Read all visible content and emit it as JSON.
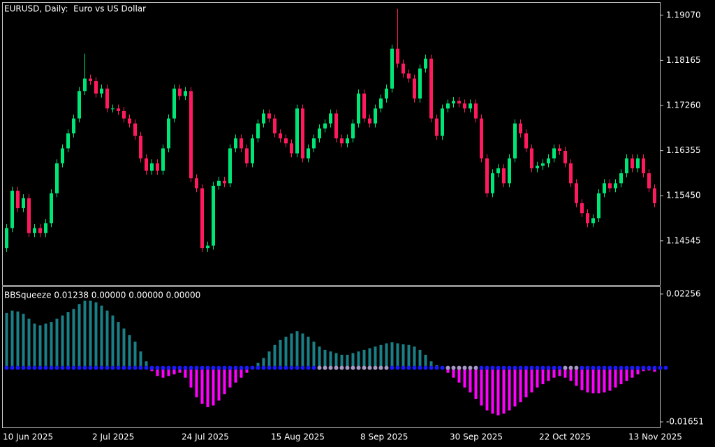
{
  "chart_data": [
    {
      "type": "candlestick",
      "title": "EURUSD, Daily:  Euro vs US Dollar",
      "categories": [
        "10 Jun 2025",
        null,
        null,
        null,
        null,
        null,
        null,
        null,
        null,
        null,
        null,
        null,
        null,
        null,
        null,
        null,
        "2 Jul 2025",
        null,
        null,
        null,
        null,
        null,
        null,
        null,
        null,
        null,
        null,
        null,
        null,
        null,
        null,
        null,
        "24 Jul 2025",
        null,
        null,
        null,
        null,
        null,
        null,
        null,
        null,
        null,
        null,
        null,
        null,
        null,
        null,
        null,
        "15 Aug 2025",
        null,
        null,
        null,
        null,
        null,
        null,
        null,
        null,
        null,
        null,
        null,
        null,
        null,
        null,
        null,
        "8 Sep 2025",
        null,
        null,
        null,
        null,
        null,
        null,
        null,
        null,
        null,
        null,
        null,
        null,
        null,
        null,
        null,
        "30 Sep 2025",
        null,
        null,
        null,
        null,
        null,
        null,
        null,
        null,
        null,
        null,
        null,
        null,
        null,
        null,
        null,
        "22 Oct 2025",
        null,
        null,
        null,
        null,
        null,
        null,
        null,
        null,
        null,
        null,
        null,
        null,
        null,
        null,
        null,
        "13 Nov 2025",
        null,
        null,
        null,
        null
      ],
      "open": [
        1.144,
        1.148,
        1.1555,
        1.152,
        1.154,
        1.147,
        1.148,
        1.147,
        1.149,
        1.155,
        1.161,
        1.164,
        1.167,
        1.17,
        1.1755,
        1.178,
        1.1775,
        1.175,
        1.176,
        1.172,
        1.172,
        1.1715,
        1.17,
        1.169,
        1.1665,
        1.162,
        1.1595,
        1.161,
        1.1595,
        1.164,
        1.17,
        1.176,
        1.1745,
        1.1755,
        1.158,
        1.156,
        1.144,
        1.1445,
        1.1565,
        1.1575,
        1.157,
        1.164,
        1.166,
        1.164,
        1.161,
        1.166,
        1.169,
        1.171,
        1.17,
        1.167,
        1.166,
        1.165,
        1.163,
        1.172,
        1.162,
        1.164,
        1.166,
        1.168,
        1.169,
        1.171,
        1.166,
        1.165,
        1.166,
        1.169,
        1.175,
        1.17,
        1.169,
        1.172,
        1.174,
        1.176,
        1.184,
        1.181,
        1.179,
        1.178,
        1.174,
        1.18,
        1.182,
        1.17,
        1.1665,
        1.172,
        1.173,
        1.1735,
        1.173,
        1.172,
        1.173,
        1.17,
        1.162,
        1.155,
        1.159,
        1.16,
        1.157,
        1.162,
        1.169,
        1.167,
        1.164,
        1.16,
        1.1605,
        1.161,
        1.162,
        1.164,
        1.1635,
        1.161,
        1.157,
        1.153,
        1.151,
        1.149,
        1.15,
        1.155,
        1.157,
        1.156,
        1.157,
        1.159,
        1.162,
        1.16,
        1.162,
        1.159,
        1.156
      ],
      "high": [
        1.1488,
        1.1563,
        1.1563,
        1.1548,
        1.1548,
        1.1488,
        1.1488,
        1.1498,
        1.1558,
        1.1618,
        1.1648,
        1.1678,
        1.1708,
        1.1763,
        1.183,
        1.1788,
        1.1783,
        1.1768,
        1.1768,
        1.1728,
        1.1728,
        1.1723,
        1.1708,
        1.1698,
        1.1673,
        1.1628,
        1.1618,
        1.1618,
        1.1648,
        1.1708,
        1.1768,
        1.1768,
        1.1763,
        1.1763,
        1.1588,
        1.1568,
        1.1453,
        1.1573,
        1.1583,
        1.1583,
        1.1648,
        1.1668,
        1.1668,
        1.1648,
        1.1668,
        1.1698,
        1.1718,
        1.1718,
        1.1708,
        1.1678,
        1.1668,
        1.1658,
        1.1728,
        1.1728,
        1.1648,
        1.1668,
        1.1688,
        1.1698,
        1.1718,
        1.1718,
        1.1668,
        1.1668,
        1.1698,
        1.1758,
        1.1758,
        1.1708,
        1.1728,
        1.1748,
        1.1768,
        1.1848,
        1.192,
        1.1818,
        1.1798,
        1.1788,
        1.1808,
        1.1828,
        1.1828,
        1.1708,
        1.1728,
        1.1738,
        1.1743,
        1.1743,
        1.1738,
        1.1738,
        1.1738,
        1.1708,
        1.1628,
        1.1598,
        1.1608,
        1.1608,
        1.1628,
        1.1698,
        1.1698,
        1.1678,
        1.1648,
        1.1613,
        1.1618,
        1.1628,
        1.1648,
        1.1648,
        1.1643,
        1.1618,
        1.1578,
        1.1538,
        1.1518,
        1.1508,
        1.1558,
        1.1578,
        1.1578,
        1.1578,
        1.1598,
        1.1628,
        1.1628,
        1.1628,
        1.1628,
        1.1598,
        1.1568
      ],
      "low": [
        1.1432,
        1.1472,
        1.1512,
        1.1512,
        1.1462,
        1.1462,
        1.1462,
        1.1462,
        1.1482,
        1.1542,
        1.1602,
        1.1632,
        1.1662,
        1.1692,
        1.1747,
        1.1767,
        1.1742,
        1.1742,
        1.1712,
        1.1712,
        1.1707,
        1.1692,
        1.1682,
        1.1657,
        1.1612,
        1.1587,
        1.1587,
        1.1587,
        1.1587,
        1.1632,
        1.1692,
        1.1737,
        1.1737,
        1.1572,
        1.1552,
        1.1432,
        1.1432,
        1.1437,
        1.1557,
        1.1562,
        1.1562,
        1.1632,
        1.1632,
        1.1602,
        1.1602,
        1.1652,
        1.1682,
        1.1692,
        1.1662,
        1.1652,
        1.1642,
        1.1622,
        1.1622,
        1.1612,
        1.1612,
        1.1632,
        1.1652,
        1.1672,
        1.1682,
        1.1652,
        1.1642,
        1.1642,
        1.1652,
        1.1682,
        1.1692,
        1.1682,
        1.1682,
        1.1712,
        1.1732,
        1.1752,
        1.1802,
        1.1782,
        1.1772,
        1.1732,
        1.1732,
        1.1792,
        1.1692,
        1.1657,
        1.1657,
        1.1712,
        1.1722,
        1.1722,
        1.1712,
        1.1712,
        1.1692,
        1.1612,
        1.1542,
        1.1542,
        1.1582,
        1.1562,
        1.1562,
        1.1612,
        1.1662,
        1.1632,
        1.1592,
        1.1592,
        1.1597,
        1.1602,
        1.1612,
        1.1627,
        1.1602,
        1.1562,
        1.1522,
        1.1502,
        1.1482,
        1.1482,
        1.1492,
        1.1542,
        1.1552,
        1.1552,
        1.1562,
        1.1582,
        1.1592,
        1.1592,
        1.1582,
        1.1552,
        1.1522
      ],
      "close": [
        1.148,
        1.1555,
        1.152,
        1.154,
        1.147,
        1.148,
        1.147,
        1.149,
        1.155,
        1.161,
        1.164,
        1.167,
        1.17,
        1.1755,
        1.178,
        1.1775,
        1.175,
        1.176,
        1.172,
        1.172,
        1.1715,
        1.17,
        1.169,
        1.1665,
        1.162,
        1.1595,
        1.161,
        1.1595,
        1.164,
        1.17,
        1.176,
        1.1745,
        1.1755,
        1.158,
        1.156,
        1.144,
        1.1445,
        1.1565,
        1.1575,
        1.157,
        1.164,
        1.166,
        1.164,
        1.161,
        1.166,
        1.169,
        1.171,
        1.17,
        1.167,
        1.166,
        1.165,
        1.163,
        1.172,
        1.162,
        1.164,
        1.166,
        1.168,
        1.169,
        1.171,
        1.166,
        1.165,
        1.166,
        1.169,
        1.175,
        1.17,
        1.169,
        1.172,
        1.174,
        1.176,
        1.184,
        1.181,
        1.179,
        1.178,
        1.174,
        1.18,
        1.182,
        1.17,
        1.1665,
        1.172,
        1.173,
        1.1735,
        1.173,
        1.172,
        1.173,
        1.17,
        1.162,
        1.155,
        1.159,
        1.16,
        1.157,
        1.162,
        1.169,
        1.167,
        1.164,
        1.16,
        1.1605,
        1.161,
        1.162,
        1.164,
        1.1635,
        1.161,
        1.157,
        1.153,
        1.151,
        1.149,
        1.15,
        1.155,
        1.157,
        1.156,
        1.157,
        1.159,
        1.162,
        1.16,
        1.162,
        1.159,
        1.156,
        1.153
      ],
      "up_color": "#00e676",
      "down_color": "#ff1a5e",
      "ylim": [
        1.1366,
        1.1932
      ],
      "yticks": [
        {
          "value": 1.1907,
          "label": "1.19070"
        },
        1.18165,
        {
          "value": 1.1726,
          "label": "1.17260"
        },
        1.16355,
        {
          "value": 1.1545,
          "label": "1.15450"
        },
        1.14545
      ]
    },
    {
      "type": "squeeze-histogram",
      "title": "BBSqueeze 0.01238 0.00000 0.00000 0.00000",
      "values": [
        0.0168,
        0.0175,
        0.0172,
        0.0165,
        0.015,
        0.0135,
        0.013,
        0.0135,
        0.014,
        0.015,
        0.016,
        0.017,
        0.018,
        0.0195,
        0.0205,
        0.0205,
        0.02,
        0.019,
        0.0175,
        0.016,
        0.014,
        0.012,
        0.01,
        0.008,
        0.005,
        0.002,
        -0.001,
        -0.0025,
        -0.003,
        -0.0025,
        -0.002,
        -0.0015,
        -0.003,
        -0.006,
        -0.009,
        -0.011,
        -0.012,
        -0.0115,
        -0.01,
        -0.008,
        -0.006,
        -0.0045,
        -0.003,
        -0.0015,
        0.0005,
        0.0015,
        0.003,
        0.005,
        0.007,
        0.0085,
        0.0095,
        0.0105,
        0.0112,
        0.0105,
        0.0095,
        0.008,
        0.0065,
        0.0055,
        0.005,
        0.0045,
        0.004,
        0.004,
        0.0045,
        0.005,
        0.0055,
        0.006,
        0.0065,
        0.007,
        0.0075,
        0.0078,
        0.0075,
        0.0072,
        0.007,
        0.0065,
        0.0055,
        0.004,
        0.002,
        0.0008,
        -0.0005,
        -0.0015,
        -0.003,
        -0.0045,
        -0.006,
        -0.0075,
        -0.0095,
        -0.0115,
        -0.013,
        -0.014,
        -0.0145,
        -0.014,
        -0.013,
        -0.0118,
        -0.0105,
        -0.009,
        -0.0075,
        -0.006,
        -0.005,
        -0.004,
        -0.003,
        -0.0025,
        -0.003,
        -0.004,
        -0.0055,
        -0.0068,
        -0.0075,
        -0.0078,
        -0.0078,
        -0.0075,
        -0.007,
        -0.006,
        -0.005,
        -0.004,
        -0.003,
        -0.002,
        -0.001,
        -0.0008,
        -0.0012
      ],
      "squeeze": [
        false,
        false,
        false,
        false,
        false,
        false,
        false,
        false,
        false,
        false,
        false,
        false,
        false,
        false,
        false,
        false,
        false,
        false,
        false,
        false,
        false,
        false,
        false,
        false,
        false,
        false,
        false,
        false,
        false,
        false,
        false,
        false,
        false,
        false,
        false,
        false,
        false,
        false,
        false,
        false,
        false,
        false,
        false,
        false,
        false,
        false,
        false,
        false,
        false,
        false,
        false,
        false,
        false,
        false,
        false,
        false,
        true,
        true,
        true,
        true,
        true,
        true,
        true,
        true,
        true,
        true,
        true,
        true,
        true,
        false,
        false,
        false,
        false,
        false,
        false,
        false,
        false,
        false,
        false,
        true,
        true,
        true,
        true,
        true,
        true,
        false,
        false,
        false,
        false,
        false,
        false,
        false,
        false,
        false,
        false,
        false,
        false,
        false,
        false,
        false,
        true,
        true,
        true,
        false,
        false,
        false,
        false,
        false,
        false,
        false,
        false,
        false,
        false,
        false,
        false,
        false,
        false,
        false,
        false
      ],
      "up_color": "#1b7f86",
      "down_color": "#ff00ff",
      "dot_color": "#1a1aff",
      "squeeze_color": "#a89ac8",
      "ylim": [
        -0.01821,
        0.02468
      ],
      "yticks": [
        0.02256,
        -0.01651
      ]
    }
  ]
}
